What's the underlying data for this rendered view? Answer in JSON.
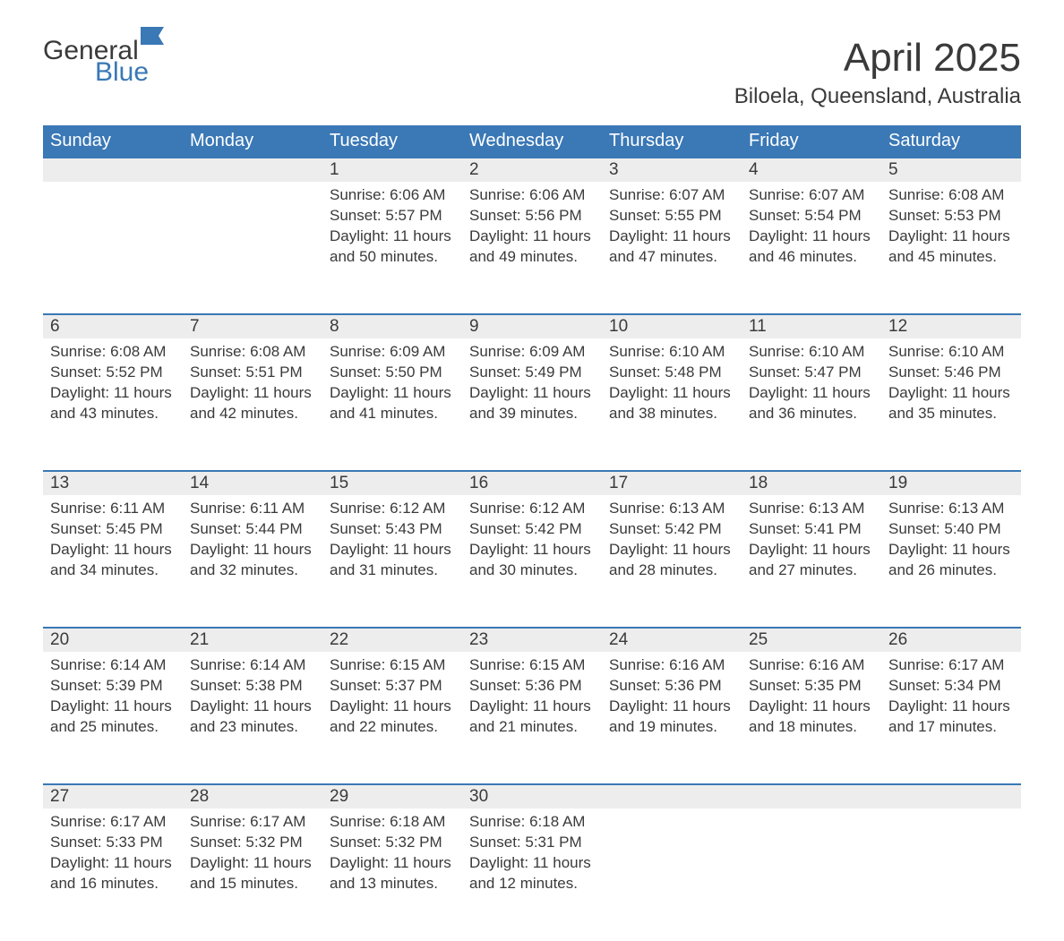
{
  "logo": {
    "general": "General",
    "blue": "Blue"
  },
  "title": "April 2025",
  "location": "Biloela, Queensland, Australia",
  "colors": {
    "header_bg": "#3a78b6",
    "header_text": "#ffffff",
    "daynum_bg": "#ededed",
    "daynum_border": "#3a78b6",
    "body_text": "#3a3a3a",
    "page_bg": "#ffffff",
    "logo_blue": "#3a78b6"
  },
  "weekdays": [
    "Sunday",
    "Monday",
    "Tuesday",
    "Wednesday",
    "Thursday",
    "Friday",
    "Saturday"
  ],
  "weeks": [
    [
      null,
      null,
      {
        "d": "1",
        "sr": "Sunrise: 6:06 AM",
        "ss": "Sunset: 5:57 PM",
        "dl": "Daylight: 11 hours and 50 minutes."
      },
      {
        "d": "2",
        "sr": "Sunrise: 6:06 AM",
        "ss": "Sunset: 5:56 PM",
        "dl": "Daylight: 11 hours and 49 minutes."
      },
      {
        "d": "3",
        "sr": "Sunrise: 6:07 AM",
        "ss": "Sunset: 5:55 PM",
        "dl": "Daylight: 11 hours and 47 minutes."
      },
      {
        "d": "4",
        "sr": "Sunrise: 6:07 AM",
        "ss": "Sunset: 5:54 PM",
        "dl": "Daylight: 11 hours and 46 minutes."
      },
      {
        "d": "5",
        "sr": "Sunrise: 6:08 AM",
        "ss": "Sunset: 5:53 PM",
        "dl": "Daylight: 11 hours and 45 minutes."
      }
    ],
    [
      {
        "d": "6",
        "sr": "Sunrise: 6:08 AM",
        "ss": "Sunset: 5:52 PM",
        "dl": "Daylight: 11 hours and 43 minutes."
      },
      {
        "d": "7",
        "sr": "Sunrise: 6:08 AM",
        "ss": "Sunset: 5:51 PM",
        "dl": "Daylight: 11 hours and 42 minutes."
      },
      {
        "d": "8",
        "sr": "Sunrise: 6:09 AM",
        "ss": "Sunset: 5:50 PM",
        "dl": "Daylight: 11 hours and 41 minutes."
      },
      {
        "d": "9",
        "sr": "Sunrise: 6:09 AM",
        "ss": "Sunset: 5:49 PM",
        "dl": "Daylight: 11 hours and 39 minutes."
      },
      {
        "d": "10",
        "sr": "Sunrise: 6:10 AM",
        "ss": "Sunset: 5:48 PM",
        "dl": "Daylight: 11 hours and 38 minutes."
      },
      {
        "d": "11",
        "sr": "Sunrise: 6:10 AM",
        "ss": "Sunset: 5:47 PM",
        "dl": "Daylight: 11 hours and 36 minutes."
      },
      {
        "d": "12",
        "sr": "Sunrise: 6:10 AM",
        "ss": "Sunset: 5:46 PM",
        "dl": "Daylight: 11 hours and 35 minutes."
      }
    ],
    [
      {
        "d": "13",
        "sr": "Sunrise: 6:11 AM",
        "ss": "Sunset: 5:45 PM",
        "dl": "Daylight: 11 hours and 34 minutes."
      },
      {
        "d": "14",
        "sr": "Sunrise: 6:11 AM",
        "ss": "Sunset: 5:44 PM",
        "dl": "Daylight: 11 hours and 32 minutes."
      },
      {
        "d": "15",
        "sr": "Sunrise: 6:12 AM",
        "ss": "Sunset: 5:43 PM",
        "dl": "Daylight: 11 hours and 31 minutes."
      },
      {
        "d": "16",
        "sr": "Sunrise: 6:12 AM",
        "ss": "Sunset: 5:42 PM",
        "dl": "Daylight: 11 hours and 30 minutes."
      },
      {
        "d": "17",
        "sr": "Sunrise: 6:13 AM",
        "ss": "Sunset: 5:42 PM",
        "dl": "Daylight: 11 hours and 28 minutes."
      },
      {
        "d": "18",
        "sr": "Sunrise: 6:13 AM",
        "ss": "Sunset: 5:41 PM",
        "dl": "Daylight: 11 hours and 27 minutes."
      },
      {
        "d": "19",
        "sr": "Sunrise: 6:13 AM",
        "ss": "Sunset: 5:40 PM",
        "dl": "Daylight: 11 hours and 26 minutes."
      }
    ],
    [
      {
        "d": "20",
        "sr": "Sunrise: 6:14 AM",
        "ss": "Sunset: 5:39 PM",
        "dl": "Daylight: 11 hours and 25 minutes."
      },
      {
        "d": "21",
        "sr": "Sunrise: 6:14 AM",
        "ss": "Sunset: 5:38 PM",
        "dl": "Daylight: 11 hours and 23 minutes."
      },
      {
        "d": "22",
        "sr": "Sunrise: 6:15 AM",
        "ss": "Sunset: 5:37 PM",
        "dl": "Daylight: 11 hours and 22 minutes."
      },
      {
        "d": "23",
        "sr": "Sunrise: 6:15 AM",
        "ss": "Sunset: 5:36 PM",
        "dl": "Daylight: 11 hours and 21 minutes."
      },
      {
        "d": "24",
        "sr": "Sunrise: 6:16 AM",
        "ss": "Sunset: 5:36 PM",
        "dl": "Daylight: 11 hours and 19 minutes."
      },
      {
        "d": "25",
        "sr": "Sunrise: 6:16 AM",
        "ss": "Sunset: 5:35 PM",
        "dl": "Daylight: 11 hours and 18 minutes."
      },
      {
        "d": "26",
        "sr": "Sunrise: 6:17 AM",
        "ss": "Sunset: 5:34 PM",
        "dl": "Daylight: 11 hours and 17 minutes."
      }
    ],
    [
      {
        "d": "27",
        "sr": "Sunrise: 6:17 AM",
        "ss": "Sunset: 5:33 PM",
        "dl": "Daylight: 11 hours and 16 minutes."
      },
      {
        "d": "28",
        "sr": "Sunrise: 6:17 AM",
        "ss": "Sunset: 5:32 PM",
        "dl": "Daylight: 11 hours and 15 minutes."
      },
      {
        "d": "29",
        "sr": "Sunrise: 6:18 AM",
        "ss": "Sunset: 5:32 PM",
        "dl": "Daylight: 11 hours and 13 minutes."
      },
      {
        "d": "30",
        "sr": "Sunrise: 6:18 AM",
        "ss": "Sunset: 5:31 PM",
        "dl": "Daylight: 11 hours and 12 minutes."
      },
      null,
      null,
      null
    ]
  ]
}
